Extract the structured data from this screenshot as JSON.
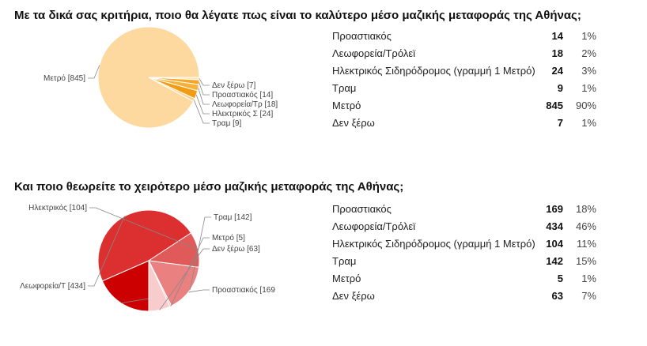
{
  "chart_data": [
    {
      "type": "pie",
      "title": "Με τα δικά σας κριτήρια, ποιο θα λέγατε πως είναι το καλύτερο μέσο μαζικής μεταφοράς της Αθήνας;",
      "categories": [
        "Προαστιακός",
        "Λεωφορεία/Τρόλεϊ",
        "Ηλεκτρικός Σιδηρόδρομος (γραμμή 1 Μετρό)",
        "Τραμ",
        "Μετρό",
        "Δεν ξέρω"
      ],
      "values": [
        14,
        18,
        24,
        9,
        845,
        7
      ],
      "percents": [
        "1%",
        "2%",
        "3%",
        "1%",
        "90%",
        "1%"
      ],
      "slice_labels": [
        "Προαστιακός [14]",
        "Λεωφορεία/Τρ [18]",
        "Ηλεκτρικός Σ [24]",
        "Τραμ [9]",
        "Μετρό [845]",
        "Δεν ξέρω [7]"
      ],
      "colors": [
        "#f6a623",
        "#f8b23c",
        "#f39c12",
        "#fcd38a",
        "#fdd9a0",
        "#fbe3b8"
      ]
    },
    {
      "type": "pie",
      "title": "Και ποιο θεωρείτε το χειρότερο μέσο μαζικής μεταφοράς της Αθήνας;",
      "categories": [
        "Προαστιακός",
        "Λεωφορεία/Τρόλεϊ",
        "Ηλεκτρικός Σιδηρόδρομος (γραμμή 1 Μετρό)",
        "Τραμ",
        "Μετρό",
        "Δεν ξέρω"
      ],
      "values": [
        169,
        434,
        104,
        142,
        5,
        63
      ],
      "percents": [
        "18%",
        "46%",
        "11%",
        "15%",
        "1%",
        "7%"
      ],
      "slice_labels": [
        "Προαστιακός [169",
        "Λεωφορεία/Τ [434]",
        "Ηλεκτρικός [104]",
        "Τραμ [142]",
        "Μετρό [5]",
        "Δεν ξέρω [63]"
      ],
      "colors": [
        "#cc0000",
        "#dc2f2f",
        "#e05a5a",
        "#ea8080",
        "#f4b6b6",
        "#f8cccc"
      ]
    }
  ]
}
